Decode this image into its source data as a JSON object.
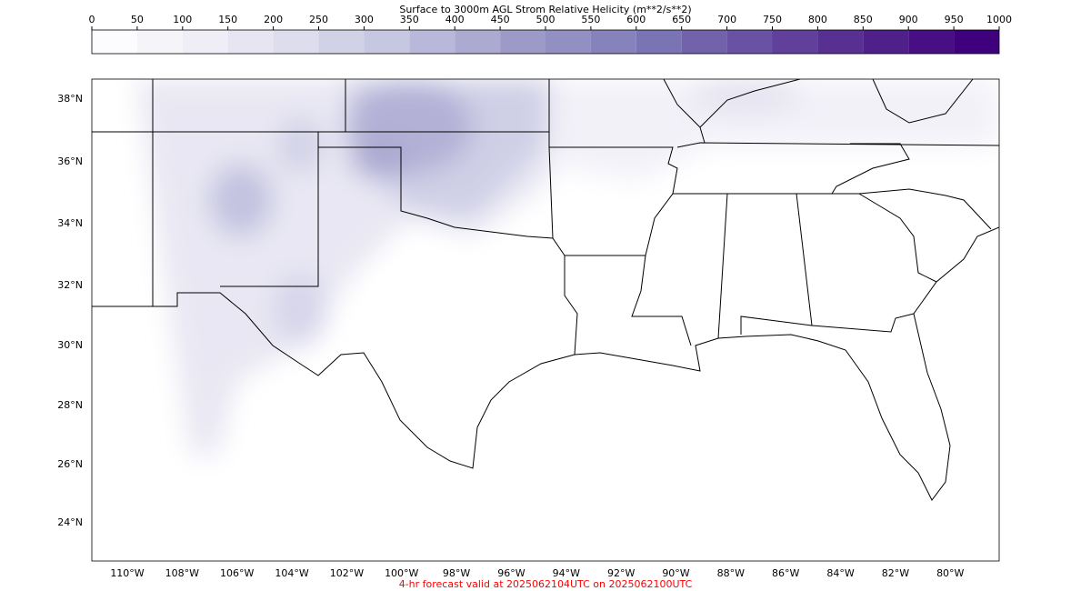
{
  "colorbar": {
    "title": "Surface to 3000m AGL Strom Relative Helicity (m**2/s**2)",
    "ticks": [
      0,
      50,
      100,
      150,
      200,
      250,
      300,
      350,
      400,
      450,
      500,
      550,
      600,
      650,
      700,
      750,
      800,
      850,
      900,
      950,
      1000
    ],
    "colors": [
      "#fcfbfd",
      "#f5f4f9",
      "#efedf5",
      "#e6e5f1",
      "#dedded",
      "#d2d2e7",
      "#c6c7e1",
      "#b9b8da",
      "#acaad1",
      "#9e9ac8",
      "#928fc2",
      "#8683bc",
      "#7b74b4",
      "#7262ab",
      "#6951a3",
      "#60409a",
      "#573092",
      "#4f1f8a",
      "#470f83",
      "#3f007d"
    ]
  },
  "map": {
    "lat_labels": [
      "38°N",
      "36°N",
      "34°N",
      "32°N",
      "30°N",
      "28°N",
      "26°N",
      "24°N"
    ],
    "lon_labels": [
      "110°W",
      "108°W",
      "106°W",
      "104°W",
      "102°W",
      "100°W",
      "98°W",
      "96°W",
      "94°W",
      "92°W",
      "90°W",
      "88°W",
      "86°W",
      "84°W",
      "82°W",
      "80°W"
    ]
  },
  "footer": "4-hr forecast valid at 2025062104UTC on 2025062100UTC"
}
